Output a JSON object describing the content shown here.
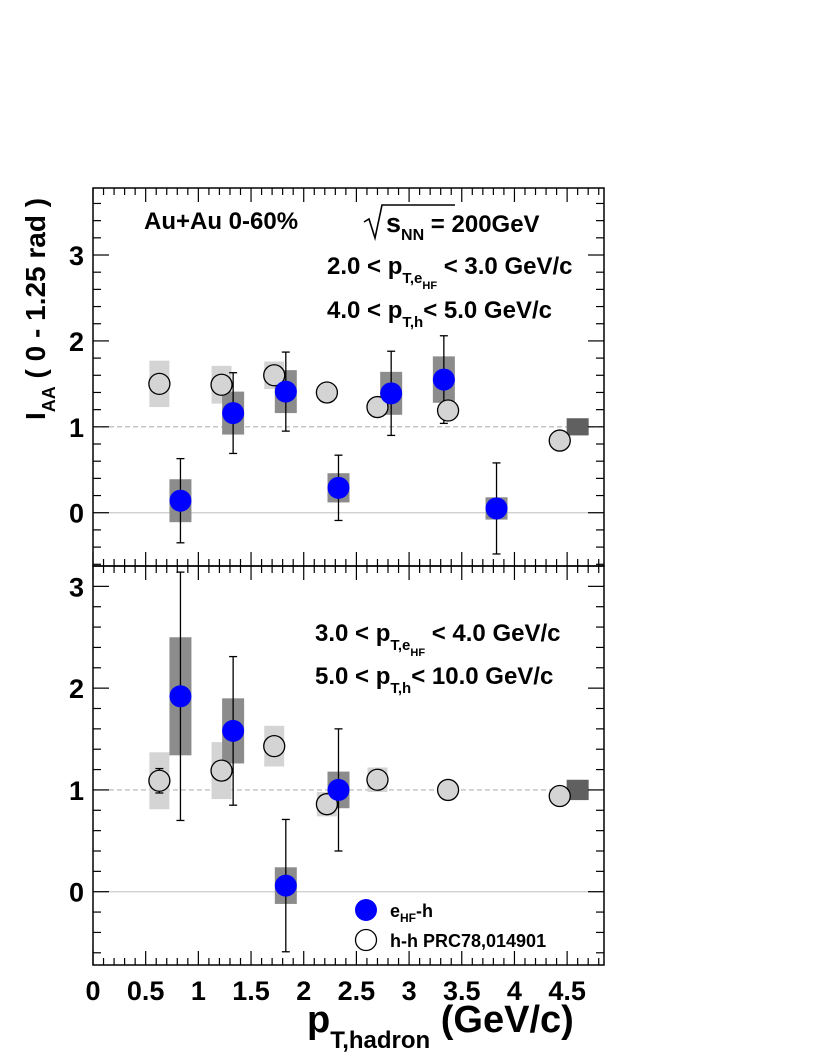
{
  "chart_data": [
    {
      "type": "scatter",
      "panel": "top",
      "ylabel": {
        "main": "I",
        "sub": "AA",
        "rest": " ( 0 - 1.25 rad )"
      },
      "collision": "Au+Au  0-60%",
      "energy": {
        "s": "s",
        "sub": "NN",
        "value": " = 200GeV"
      },
      "cut_electron": {
        "pre": "2.0 < p",
        "sub1": "T,e",
        "sub2": "HF",
        "post": "< 3.0 GeV/c"
      },
      "cut_hadron": {
        "pre": "4.0 < p",
        "sub": "T,h",
        "post": "< 5.0 GeV/c"
      },
      "ylim": [
        -0.62,
        3.78
      ],
      "yticks": [
        {
          "value": 0,
          "label": "0"
        },
        {
          "value": 1,
          "label": "1"
        },
        {
          "value": 2,
          "label": "2"
        },
        {
          "value": 3,
          "label": "3"
        }
      ],
      "reference_line": 1,
      "zero_line": 0,
      "series": [
        {
          "name": "eHF-h",
          "marker": "filled-circle",
          "color": "#0000ff",
          "points": [
            {
              "x": 0.83,
              "y": 0.14,
              "stat": 0.49,
              "sys": 0.25
            },
            {
              "x": 1.33,
              "y": 1.16,
              "stat": 0.47,
              "sys": 0.25
            },
            {
              "x": 1.83,
              "y": 1.41,
              "stat": 0.46,
              "sys": 0.25
            },
            {
              "x": 2.33,
              "y": 0.29,
              "stat": 0.38,
              "sys": 0.17
            },
            {
              "x": 2.83,
              "y": 1.39,
              "stat": 0.49,
              "sys": 0.25
            },
            {
              "x": 3.33,
              "y": 1.55,
              "stat": 0.51,
              "sys": 0.27
            },
            {
              "x": 3.83,
              "y": 0.05,
              "stat": 0.53,
              "sys": 0.13
            }
          ]
        },
        {
          "name": "h-h PRC78,014901",
          "marker": "open-circle",
          "color": "#d4d4d4",
          "points": [
            {
              "x": 0.63,
              "y": 1.5,
              "sys": 0.27
            },
            {
              "x": 1.22,
              "y": 1.49,
              "sys": 0.22
            },
            {
              "x": 1.72,
              "y": 1.6,
              "sys": 0.16
            },
            {
              "x": 2.22,
              "y": 1.4,
              "sys": 0.05
            },
            {
              "x": 2.7,
              "y": 1.23,
              "sys": 0.05
            },
            {
              "x": 3.37,
              "y": 1.19,
              "sys": 0.05
            },
            {
              "x": 4.43,
              "y": 0.84,
              "sys": 0.05
            }
          ]
        }
      ],
      "normalization_box": {
        "x": 4.6,
        "y": 1.0,
        "half_height": 0.1
      }
    },
    {
      "type": "scatter",
      "panel": "bottom",
      "cut_electron": {
        "pre": "3.0 < p",
        "sub1": "T,e",
        "sub2": "HF",
        "post": "< 4.0 GeV/c"
      },
      "cut_hadron": {
        "pre": "5.0 < p",
        "sub": "T,h",
        "post": "< 10.0 GeV/c"
      },
      "ylim": [
        -0.72,
        3.2
      ],
      "yticks": [
        {
          "value": 0,
          "label": "0"
        },
        {
          "value": 1,
          "label": "1"
        },
        {
          "value": 2,
          "label": "2"
        },
        {
          "value": 3,
          "label": "3"
        }
      ],
      "reference_line": 1,
      "zero_line": 0,
      "series": [
        {
          "name": "eHF-h",
          "marker": "filled-circle",
          "color": "#0000ff",
          "points": [
            {
              "x": 0.83,
              "y": 1.92,
              "stat": 1.22,
              "sys": 0.58
            },
            {
              "x": 1.33,
              "y": 1.58,
              "stat": 0.73,
              "sys": 0.32
            },
            {
              "x": 1.83,
              "y": 0.06,
              "stat": 0.65,
              "sys": 0.18
            },
            {
              "x": 2.33,
              "y": 1.0,
              "stat": 0.6,
              "sys": 0.18
            }
          ]
        },
        {
          "name": "h-h PRC78,014901",
          "marker": "open-circle",
          "color": "#d4d4d4",
          "points": [
            {
              "x": 0.63,
              "y": 1.09,
              "stat": 0.12,
              "sys": 0.28
            },
            {
              "x": 1.22,
              "y": 1.19,
              "sys": 0.28
            },
            {
              "x": 1.72,
              "y": 1.43,
              "sys": 0.2
            },
            {
              "x": 2.22,
              "y": 0.86,
              "sys": 0.12
            },
            {
              "x": 2.7,
              "y": 1.1,
              "sys": 0.12
            },
            {
              "x": 3.37,
              "y": 1.0,
              "sys": 0.05
            },
            {
              "x": 4.43,
              "y": 0.94,
              "sys": 0.05
            }
          ]
        }
      ],
      "normalization_box": {
        "x": 4.6,
        "y": 1.0,
        "half_height": 0.1
      },
      "legend": {
        "placement": "bottom-right",
        "entries": [
          {
            "marker": "filled-circle",
            "main": "e",
            "sub": "HF",
            "rest": "-h"
          },
          {
            "marker": "open-circle",
            "main": "h-h PRC78,014901",
            "sub": "",
            "rest": ""
          }
        ]
      }
    }
  ],
  "x_axis": {
    "xlim": [
      0,
      4.85
    ],
    "xticks": [
      {
        "value": 0,
        "label": "0"
      },
      {
        "value": 0.5,
        "label": "0.5"
      },
      {
        "value": 1,
        "label": "1"
      },
      {
        "value": 1.5,
        "label": "1.5"
      },
      {
        "value": 2,
        "label": "2"
      },
      {
        "value": 2.5,
        "label": "2.5"
      },
      {
        "value": 3,
        "label": "3"
      },
      {
        "value": 3.5,
        "label": "3.5"
      },
      {
        "value": 4,
        "label": "4"
      },
      {
        "value": 4.5,
        "label": "4.5"
      }
    ],
    "label": {
      "main": "p",
      "sub": "T,hadron",
      "rest": " (GeV/c)"
    }
  },
  "colors": {
    "signal": "#0000ff",
    "signal_sys_box": "#8c8c8c",
    "reference_sys_box": "#d4d4d4",
    "normalization_box": "#606060",
    "dashed_line": "#b4b4b4",
    "zero_line": "#cccccc"
  }
}
